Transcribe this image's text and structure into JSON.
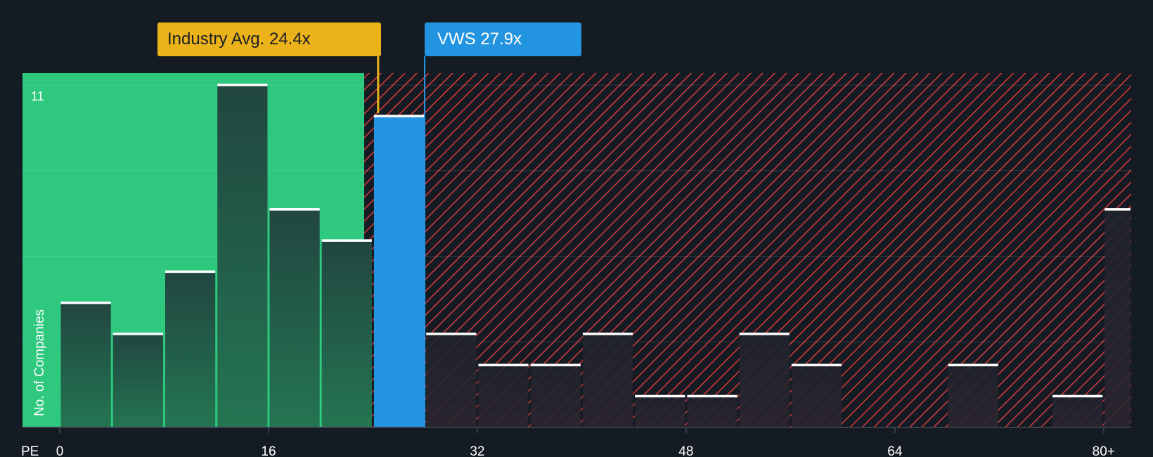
{
  "chart_data": {
    "type": "bar",
    "xlabel": "PE",
    "ylabel": "No. of Companies",
    "x_tick_labels": [
      "0",
      "16",
      "32",
      "48",
      "64",
      "80+"
    ],
    "x_ticks": [
      0,
      16,
      32,
      48,
      64,
      80
    ],
    "y_tick_labels": [
      "11"
    ],
    "ylim": [
      0,
      11
    ],
    "bin_width": 4,
    "bins_start": [
      0,
      4,
      8,
      12,
      16,
      20,
      24,
      28,
      32,
      36,
      40,
      44,
      48,
      52,
      56,
      60,
      64,
      68,
      72,
      76,
      80
    ],
    "values": [
      4,
      3,
      5,
      11,
      7,
      6,
      10,
      3,
      2,
      2,
      3,
      1,
      1,
      3,
      2,
      0,
      0,
      2,
      0,
      1,
      7
    ],
    "highlight_bin_start": 24,
    "industry_avg": {
      "label": "Industry Avg. 24.4x",
      "value": 24.4
    },
    "company": {
      "label": "VWS 27.9x",
      "value": 27.9
    },
    "colors": {
      "good_zone": "#2ec87f",
      "bad_zone_hatch": "#d8393f",
      "company": "#2394e0",
      "industry": "#ecb21a",
      "background": "#151b23"
    },
    "grid": true
  }
}
